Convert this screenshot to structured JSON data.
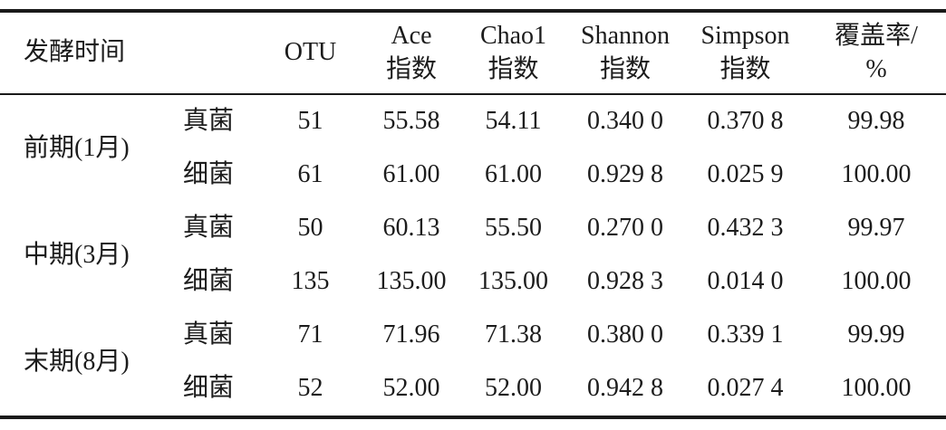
{
  "table": {
    "headers": {
      "time": "发酵时间",
      "kingdom": "",
      "otu": "OTU",
      "ace_line1": "Ace",
      "ace_line2": "指数",
      "chao1_line1": "Chao1",
      "chao1_line2": "指数",
      "shannon_line1": "Shannon",
      "shannon_line2": "指数",
      "simpson_line1": "Simpson",
      "simpson_line2": "指数",
      "coverage_line1": "覆盖率/",
      "coverage_line2": "%"
    },
    "groups": [
      {
        "period": "前期(1月)",
        "rows": [
          {
            "kingdom": "真菌",
            "otu": "51",
            "ace": "55.58",
            "chao1": "54.11",
            "shannon": "0.340 0",
            "simpson": "0.370 8",
            "coverage": "99.98"
          },
          {
            "kingdom": "细菌",
            "otu": "61",
            "ace": "61.00",
            "chao1": "61.00",
            "shannon": "0.929 8",
            "simpson": "0.025 9",
            "coverage": "100.00"
          }
        ]
      },
      {
        "period": "中期(3月)",
        "rows": [
          {
            "kingdom": "真菌",
            "otu": "50",
            "ace": "60.13",
            "chao1": "55.50",
            "shannon": "0.270 0",
            "simpson": "0.432 3",
            "coverage": "99.97"
          },
          {
            "kingdom": "细菌",
            "otu": "135",
            "ace": "135.00",
            "chao1": "135.00",
            "shannon": "0.928 3",
            "simpson": "0.014 0",
            "coverage": "100.00"
          }
        ]
      },
      {
        "period": "末期(8月)",
        "rows": [
          {
            "kingdom": "真菌",
            "otu": "71",
            "ace": "71.96",
            "chao1": "71.38",
            "shannon": "0.380 0",
            "simpson": "0.339 1",
            "coverage": "99.99"
          },
          {
            "kingdom": "细菌",
            "otu": "52",
            "ace": "52.00",
            "chao1": "52.00",
            "shannon": "0.942 8",
            "simpson": "0.027 4",
            "coverage": "100.00"
          }
        ]
      }
    ]
  }
}
